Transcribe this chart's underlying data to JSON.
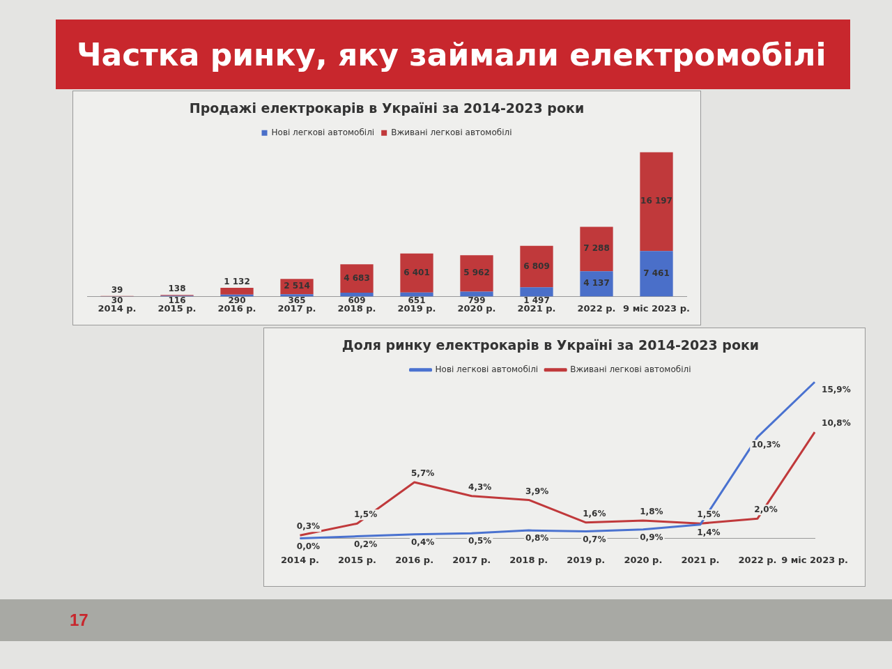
{
  "chart_data": [
    {
      "type": "other",
      "title": "Частка ринку, яку займали електромобілі",
      "annotations": [
        "17"
      ]
    },
    {
      "type": "bar",
      "title": "Продажі електрокарів в Україні за 2014-2023 роки",
      "stacked": true,
      "legend": "top",
      "tick_labels": "x",
      "grid": false,
      "categories": [
        "2014 р.",
        "2015 р.",
        "2016 р.",
        "2017 р.",
        "2018 р.",
        "2019 р.",
        "2020 р.",
        "2021 р.",
        "2022 р.",
        "9 міс 2023 р."
      ],
      "series": [
        {
          "name": "Нові легкові автомобілі",
          "color": "#4a6fc9",
          "values": [
            30,
            116,
            290,
            365,
            609,
            651,
            799,
            1497,
            4137,
            7461
          ],
          "value_labels": [
            "30",
            "116",
            "290",
            "365",
            "609",
            "651",
            "799",
            "1 497",
            "4 137",
            "7 461"
          ]
        },
        {
          "name": "Вживані легкові автомобілі",
          "color": "#c0393b",
          "values": [
            39,
            138,
            1132,
            2514,
            4683,
            6401,
            5962,
            6809,
            7288,
            16197
          ],
          "value_labels": [
            "39",
            "138",
            "1 132",
            "2 514",
            "4 683",
            "6 401",
            "5 962",
            "6 809",
            "7 288",
            "16 197"
          ]
        }
      ]
    },
    {
      "type": "line",
      "title": "Доля ринку електрокарів в Україні за 2014-2023 роки",
      "legend": "top",
      "tick_labels": "x",
      "grid": false,
      "marker": "none",
      "line_style": "solid",
      "categories": [
        "2014 р.",
        "2015 р.",
        "2016 р.",
        "2017 р.",
        "2018 р.",
        "2019 р.",
        "2020 р.",
        "2021 р.",
        "2022 р.",
        "9 міс 2023 р."
      ],
      "series": [
        {
          "name": "Нові легкові автомобілі",
          "color": "#4a72d0",
          "values": [
            0.0,
            0.2,
            0.4,
            0.5,
            0.8,
            0.7,
            0.9,
            1.4,
            10.3,
            15.9
          ],
          "value_labels": [
            "0,0%",
            "0,2%",
            "0,4%",
            "0,5%",
            "0,8%",
            "0,7%",
            "0,9%",
            "1,4%",
            "10,3%",
            "15,9%"
          ]
        },
        {
          "name": "Вживані легкові автомобілі",
          "color": "#c0393b",
          "values": [
            0.3,
            1.5,
            5.7,
            4.3,
            3.9,
            1.6,
            1.8,
            1.5,
            2.0,
            10.8
          ],
          "value_labels": [
            "0,3%",
            "1,5%",
            "5,7%",
            "4,3%",
            "3,9%",
            "1,6%",
            "1,8%",
            "1,5%",
            "2,0%",
            "10,8%"
          ]
        }
      ]
    }
  ]
}
